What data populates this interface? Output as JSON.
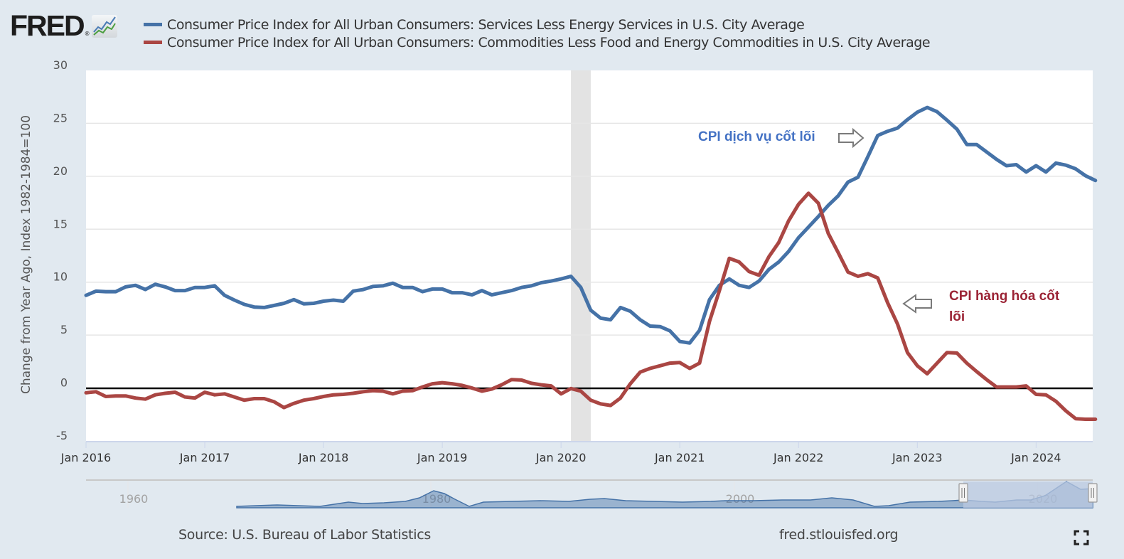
{
  "header": {
    "logo_text": "FRED",
    "logo_reg": "®",
    "logo_icon": "line-chart-icon"
  },
  "legend": [
    {
      "label": "Consumer Price Index for All Urban Consumers: Services Less Energy Services in U.S. City Average",
      "color": "#4572a7"
    },
    {
      "label": "Consumer Price Index for All Urban Consumers: Commodities Less Food and Energy Commodities in U.S. City Average",
      "color": "#aa4643"
    }
  ],
  "annotations": {
    "services": {
      "text": "CPI dịch vụ cốt lõi",
      "color": "#4472c4",
      "arrow": "right-arrow-icon"
    },
    "goods": {
      "text": "CPI hàng hóa cốt lõi",
      "color": "#9b2335",
      "arrow": "left-arrow-icon"
    }
  },
  "footer": {
    "source": "Source: U.S. Bureau of Labor Statistics",
    "url": "fred.stlouisfed.org",
    "fullscreen_icon": "fullscreen-icon"
  },
  "navigator": {
    "labels": [
      "1960",
      "1980",
      "2000",
      "2020"
    ],
    "selected_range": [
      "Jan 2016",
      "Jul 2024"
    ]
  },
  "chart_data": {
    "type": "line",
    "title": "",
    "xlabel": "",
    "ylabel": "Change from Year Ago, Index 1982-1984=100",
    "ylim": [
      -5,
      30
    ],
    "yticks": [
      -5,
      0,
      5,
      10,
      15,
      20,
      25,
      30
    ],
    "xtick_labels": [
      "Jan 2016",
      "Jan 2017",
      "Jan 2018",
      "Jan 2019",
      "Jan 2020",
      "Jan 2021",
      "Jan 2022",
      "Jan 2023",
      "Jan 2024"
    ],
    "x_start": "2016-01",
    "x_end": "2024-07",
    "frequency": "monthly",
    "grid": true,
    "zero_line": true,
    "recession_shading": [
      [
        "2020-02",
        "2020-04"
      ]
    ],
    "legend_position": "top",
    "series": [
      {
        "name": "Consumer Price Index for All Urban Consumers: Services Less Energy Services in U.S. City Average",
        "color": "#4572a7",
        "values": [
          8.75,
          9.15,
          9.1,
          9.1,
          9.55,
          9.7,
          9.3,
          9.8,
          9.55,
          9.2,
          9.2,
          9.5,
          9.5,
          9.65,
          8.75,
          8.3,
          7.9,
          7.65,
          7.6,
          7.8,
          8.0,
          8.35,
          7.95,
          8.0,
          8.2,
          8.3,
          8.2,
          9.15,
          9.3,
          9.6,
          9.65,
          9.9,
          9.5,
          9.5,
          9.1,
          9.35,
          9.35,
          9.0,
          9.0,
          8.8,
          9.2,
          8.8,
          9.0,
          9.2,
          9.5,
          9.65,
          9.95,
          10.1,
          10.3,
          10.55,
          9.5,
          7.35,
          6.6,
          6.45,
          7.6,
          7.25,
          6.45,
          5.85,
          5.8,
          5.4,
          4.4,
          4.25,
          5.45,
          8.35,
          9.7,
          10.3,
          9.7,
          9.5,
          10.1,
          11.2,
          11.9,
          12.9,
          14.2,
          15.2,
          16.2,
          17.25,
          18.15,
          19.45,
          19.9,
          21.85,
          23.85,
          24.25,
          24.55,
          25.35,
          26.05,
          26.5,
          26.1,
          25.3,
          24.45,
          23.0,
          23.0,
          22.3,
          21.6,
          21.0,
          21.1,
          20.4,
          21.0,
          20.4,
          21.25,
          21.05,
          20.7,
          20.05,
          19.6
        ]
      },
      {
        "name": "Consumer Price Index for All Urban Consumers: Commodities Less Food and Energy Commodities in U.S. City Average",
        "color": "#aa4643",
        "values": [
          -0.45,
          -0.35,
          -0.8,
          -0.75,
          -0.75,
          -0.95,
          -1.05,
          -0.65,
          -0.5,
          -0.4,
          -0.85,
          -0.95,
          -0.4,
          -0.65,
          -0.55,
          -0.85,
          -1.15,
          -1.0,
          -1.0,
          -1.3,
          -1.85,
          -1.45,
          -1.15,
          -1.0,
          -0.8,
          -0.65,
          -0.6,
          -0.5,
          -0.35,
          -0.25,
          -0.3,
          -0.55,
          -0.3,
          -0.25,
          0.1,
          0.4,
          0.5,
          0.4,
          0.25,
          0.0,
          -0.3,
          -0.1,
          0.3,
          0.8,
          0.75,
          0.45,
          0.3,
          0.2,
          -0.55,
          -0.05,
          -0.3,
          -1.15,
          -1.5,
          -1.65,
          -0.95,
          0.4,
          1.5,
          1.85,
          2.1,
          2.35,
          2.4,
          1.85,
          2.35,
          6.3,
          9.2,
          12.25,
          11.9,
          11.0,
          10.65,
          12.4,
          13.75,
          15.8,
          17.35,
          18.4,
          17.45,
          14.6,
          12.8,
          10.95,
          10.55,
          10.8,
          10.4,
          8.05,
          6.05,
          3.35,
          2.1,
          1.35,
          2.35,
          3.35,
          3.3,
          2.35,
          1.55,
          0.8,
          0.1,
          0.1,
          0.1,
          0.2,
          -0.6,
          -0.65,
          -1.25,
          -2.15,
          -2.9,
          -2.95,
          -2.95
        ]
      }
    ]
  }
}
